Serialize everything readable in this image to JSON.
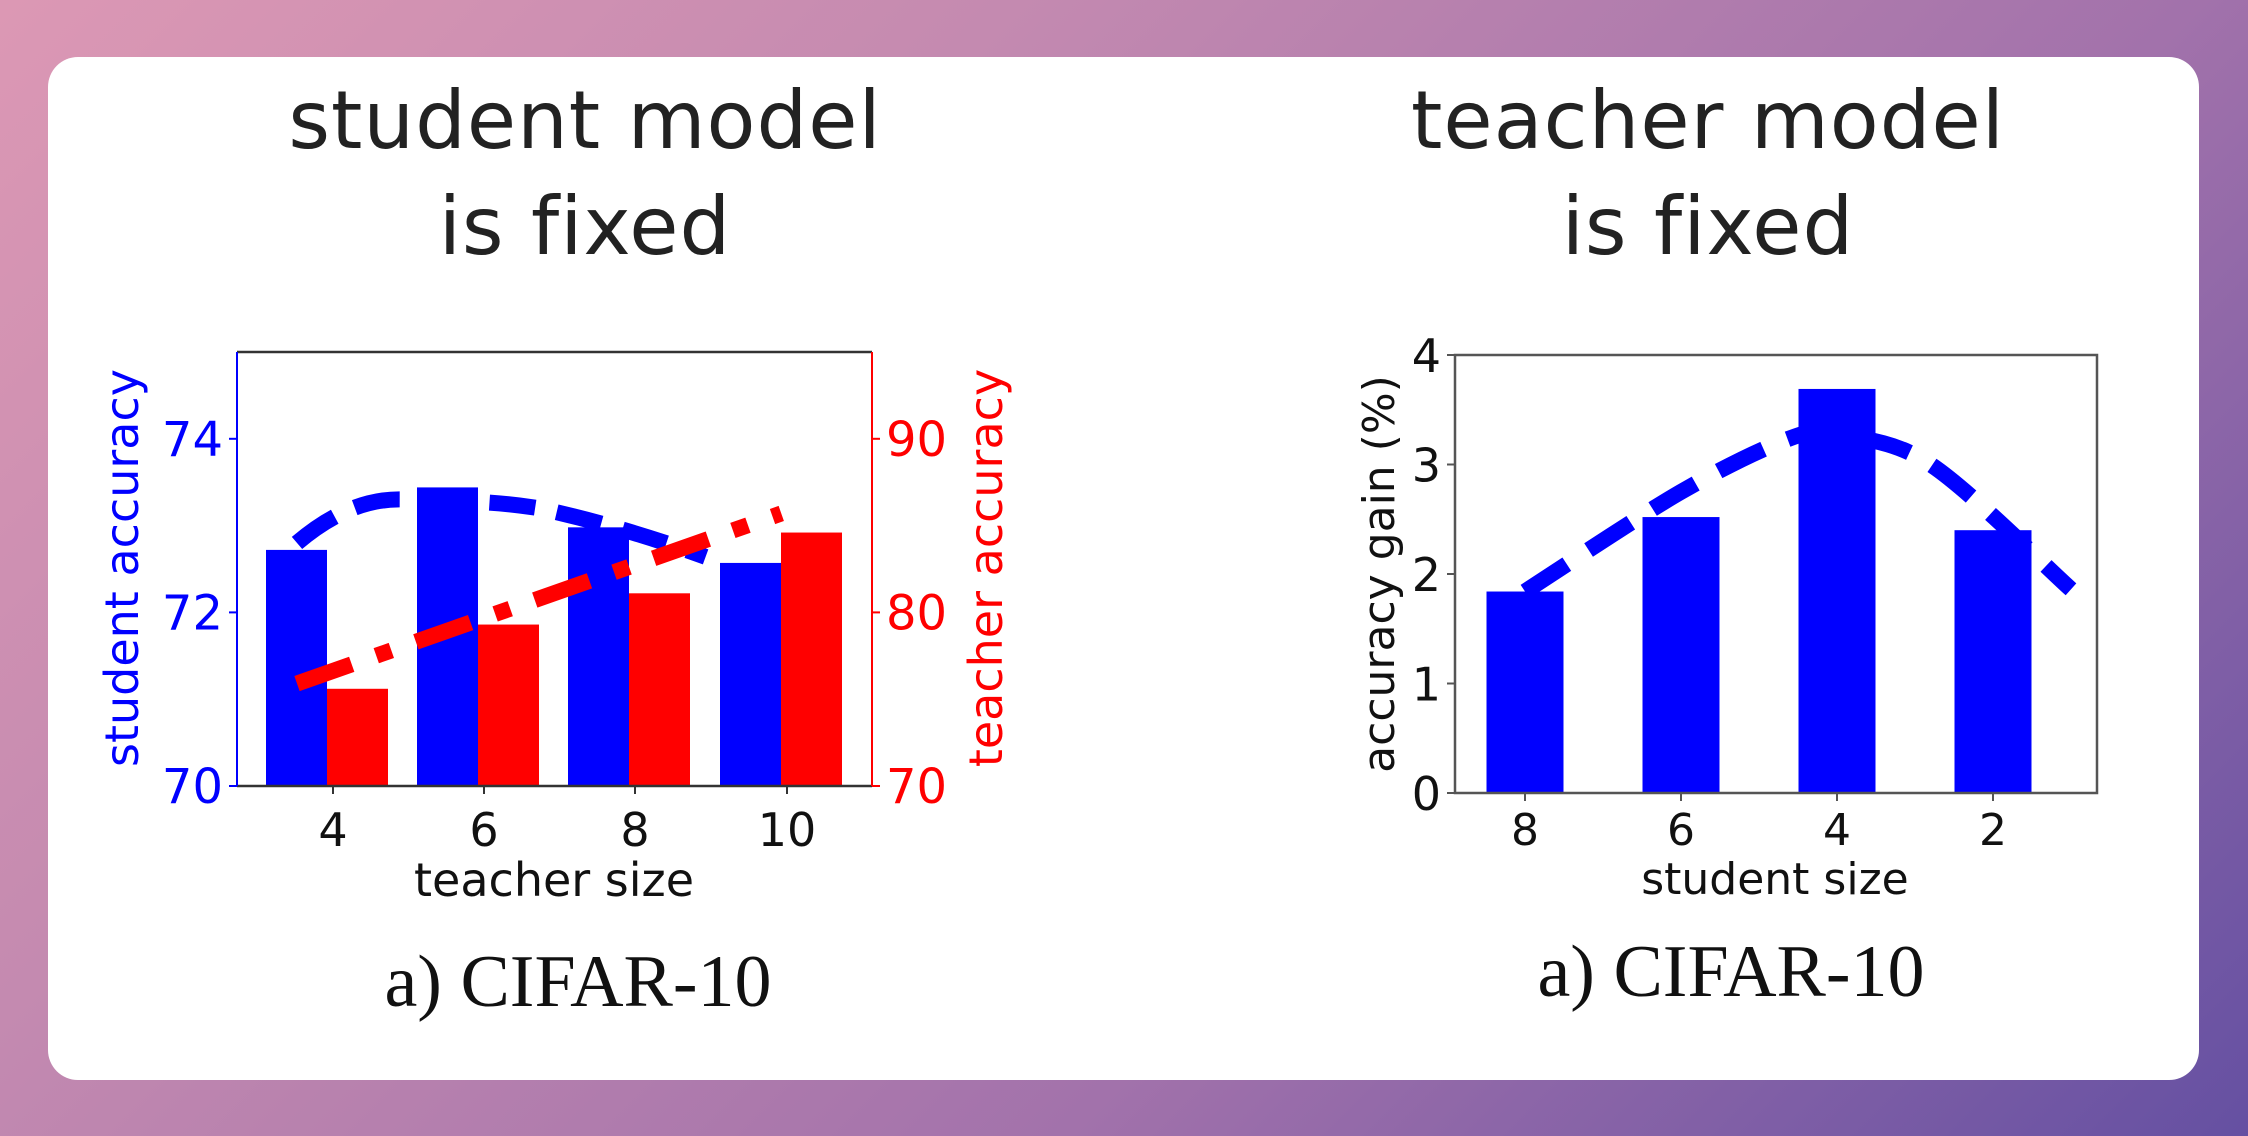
{
  "panels": [
    {
      "title_line1": "student model",
      "title_line2": "is fixed",
      "caption": "a) CIFAR-10"
    },
    {
      "title_line1": "teacher model",
      "title_line2": "is fixed",
      "caption": "a) CIFAR-10"
    }
  ],
  "colors": {
    "student": "#0000ff",
    "teacher": "#ff0000",
    "axis": "#333333",
    "text": "#111111",
    "background_start": "#dc98b4",
    "background_end": "#6550a2"
  },
  "chart_data": [
    {
      "type": "bar",
      "title": "student model is fixed",
      "caption": "a) CIFAR-10",
      "xlabel": "teacher size",
      "ylabel": "student accuracy",
      "ylabel_right": "teacher accuracy",
      "categories": [
        "4",
        "6",
        "8",
        "10"
      ],
      "ylim": [
        70,
        75
      ],
      "ylim_right": [
        70,
        95
      ],
      "yticks": [
        70,
        72,
        74
      ],
      "yticks_right": [
        70,
        80,
        90
      ],
      "series": [
        {
          "name": "student accuracy",
          "axis": "left",
          "color": "#0000ff",
          "values": [
            72.72,
            73.44,
            72.98,
            72.57
          ]
        },
        {
          "name": "teacher accuracy",
          "axis": "right",
          "color": "#ff0000",
          "values": [
            75.6,
            79.3,
            81.1,
            84.6
          ]
        }
      ],
      "trend_lines": [
        {
          "name": "student trend (quadratic fit)",
          "axis": "left",
          "color": "#0000ff",
          "style": "dashed",
          "points": [
            [
              4,
              72.8
            ],
            [
              5.7,
              73.27
            ],
            [
              7.2,
              73.2
            ],
            [
              9.4,
              72.64
            ]
          ]
        },
        {
          "name": "teacher trend (linear fit)",
          "axis": "right",
          "color": "#ff0000",
          "style": "dash-dot",
          "points": [
            [
              4,
              75.9
            ],
            [
              10.4,
              85.7
            ]
          ]
        }
      ],
      "grid": false,
      "legend": null
    },
    {
      "type": "bar",
      "title": "teacher model is fixed",
      "caption": "a) CIFAR-10",
      "xlabel": "student size",
      "ylabel": "accuracy gain (%)",
      "categories": [
        "8",
        "6",
        "4",
        "2"
      ],
      "ylim": [
        0,
        4
      ],
      "yticks": [
        0,
        1,
        2,
        3,
        4
      ],
      "series": [
        {
          "name": "accuracy gain",
          "color": "#0000ff",
          "values": [
            1.84,
            2.52,
            3.69,
            2.4
          ]
        }
      ],
      "trend_lines": [
        {
          "name": "gain trend (quadratic fit)",
          "color": "#0000ff",
          "style": "dashed",
          "points": [
            [
              0,
              1.84
            ],
            [
              1.0,
              2.75
            ],
            [
              1.7,
              3.24
            ],
            [
              2.0,
              3.27
            ],
            [
              2.6,
              3.0
            ],
            [
              3.5,
              1.86
            ]
          ]
        }
      ],
      "grid": false,
      "legend": null
    }
  ]
}
